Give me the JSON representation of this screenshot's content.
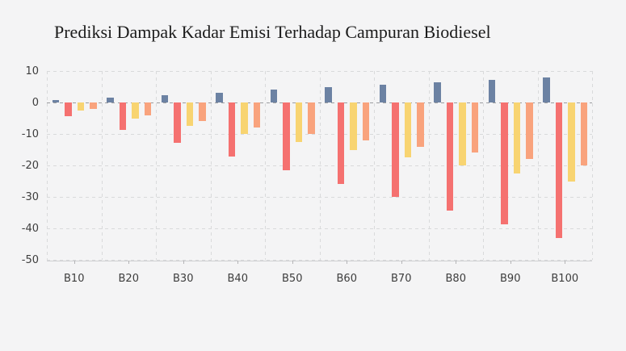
{
  "figure": {
    "background_color": "#f4f4f5"
  },
  "chart_data": {
    "type": "bar",
    "title": "Prediksi Dampak Kadar Emisi Terhadap Campuran Biodiesel",
    "categories": [
      "B10",
      "B20",
      "B30",
      "B40",
      "B50",
      "B60",
      "B70",
      "B80",
      "B90",
      "B100"
    ],
    "series": [
      {
        "name": "series-blue",
        "color": "#6c82a3",
        "values": [
          0.8,
          1.6,
          2.4,
          3.2,
          4.0,
          4.8,
          5.6,
          6.4,
          7.2,
          8.0
        ]
      },
      {
        "name": "series-red",
        "color": "#f57170",
        "values": [
          -4.3,
          -8.6,
          -12.9,
          -17.2,
          -21.5,
          -25.8,
          -30.1,
          -34.4,
          -38.7,
          -43.0
        ]
      },
      {
        "name": "series-yellow",
        "color": "#f8d471",
        "values": [
          -2.5,
          -5.0,
          -7.5,
          -10.0,
          -12.5,
          -15.0,
          -17.5,
          -20.0,
          -22.5,
          -25.0
        ]
      },
      {
        "name": "series-orange",
        "color": "#f9a37d",
        "values": [
          -2.0,
          -4.0,
          -6.0,
          -8.0,
          -10.0,
          -12.0,
          -14.0,
          -16.0,
          -18.0,
          -20.0
        ]
      }
    ],
    "xlabel": "",
    "ylabel": "",
    "ylim": [
      -50,
      10
    ],
    "yticks": [
      10,
      0,
      -10,
      -20,
      -30,
      -40,
      -50
    ],
    "grid": true,
    "grid_style": "dashed",
    "legend": "none"
  },
  "axis_colors": {
    "label": "#3d3d3d",
    "grid": "#d9dadb",
    "zero_line": "#9c9da0",
    "axis_line": "#cfd0d2",
    "tick": "#b4b4b6",
    "title": "#1c1c1c"
  }
}
